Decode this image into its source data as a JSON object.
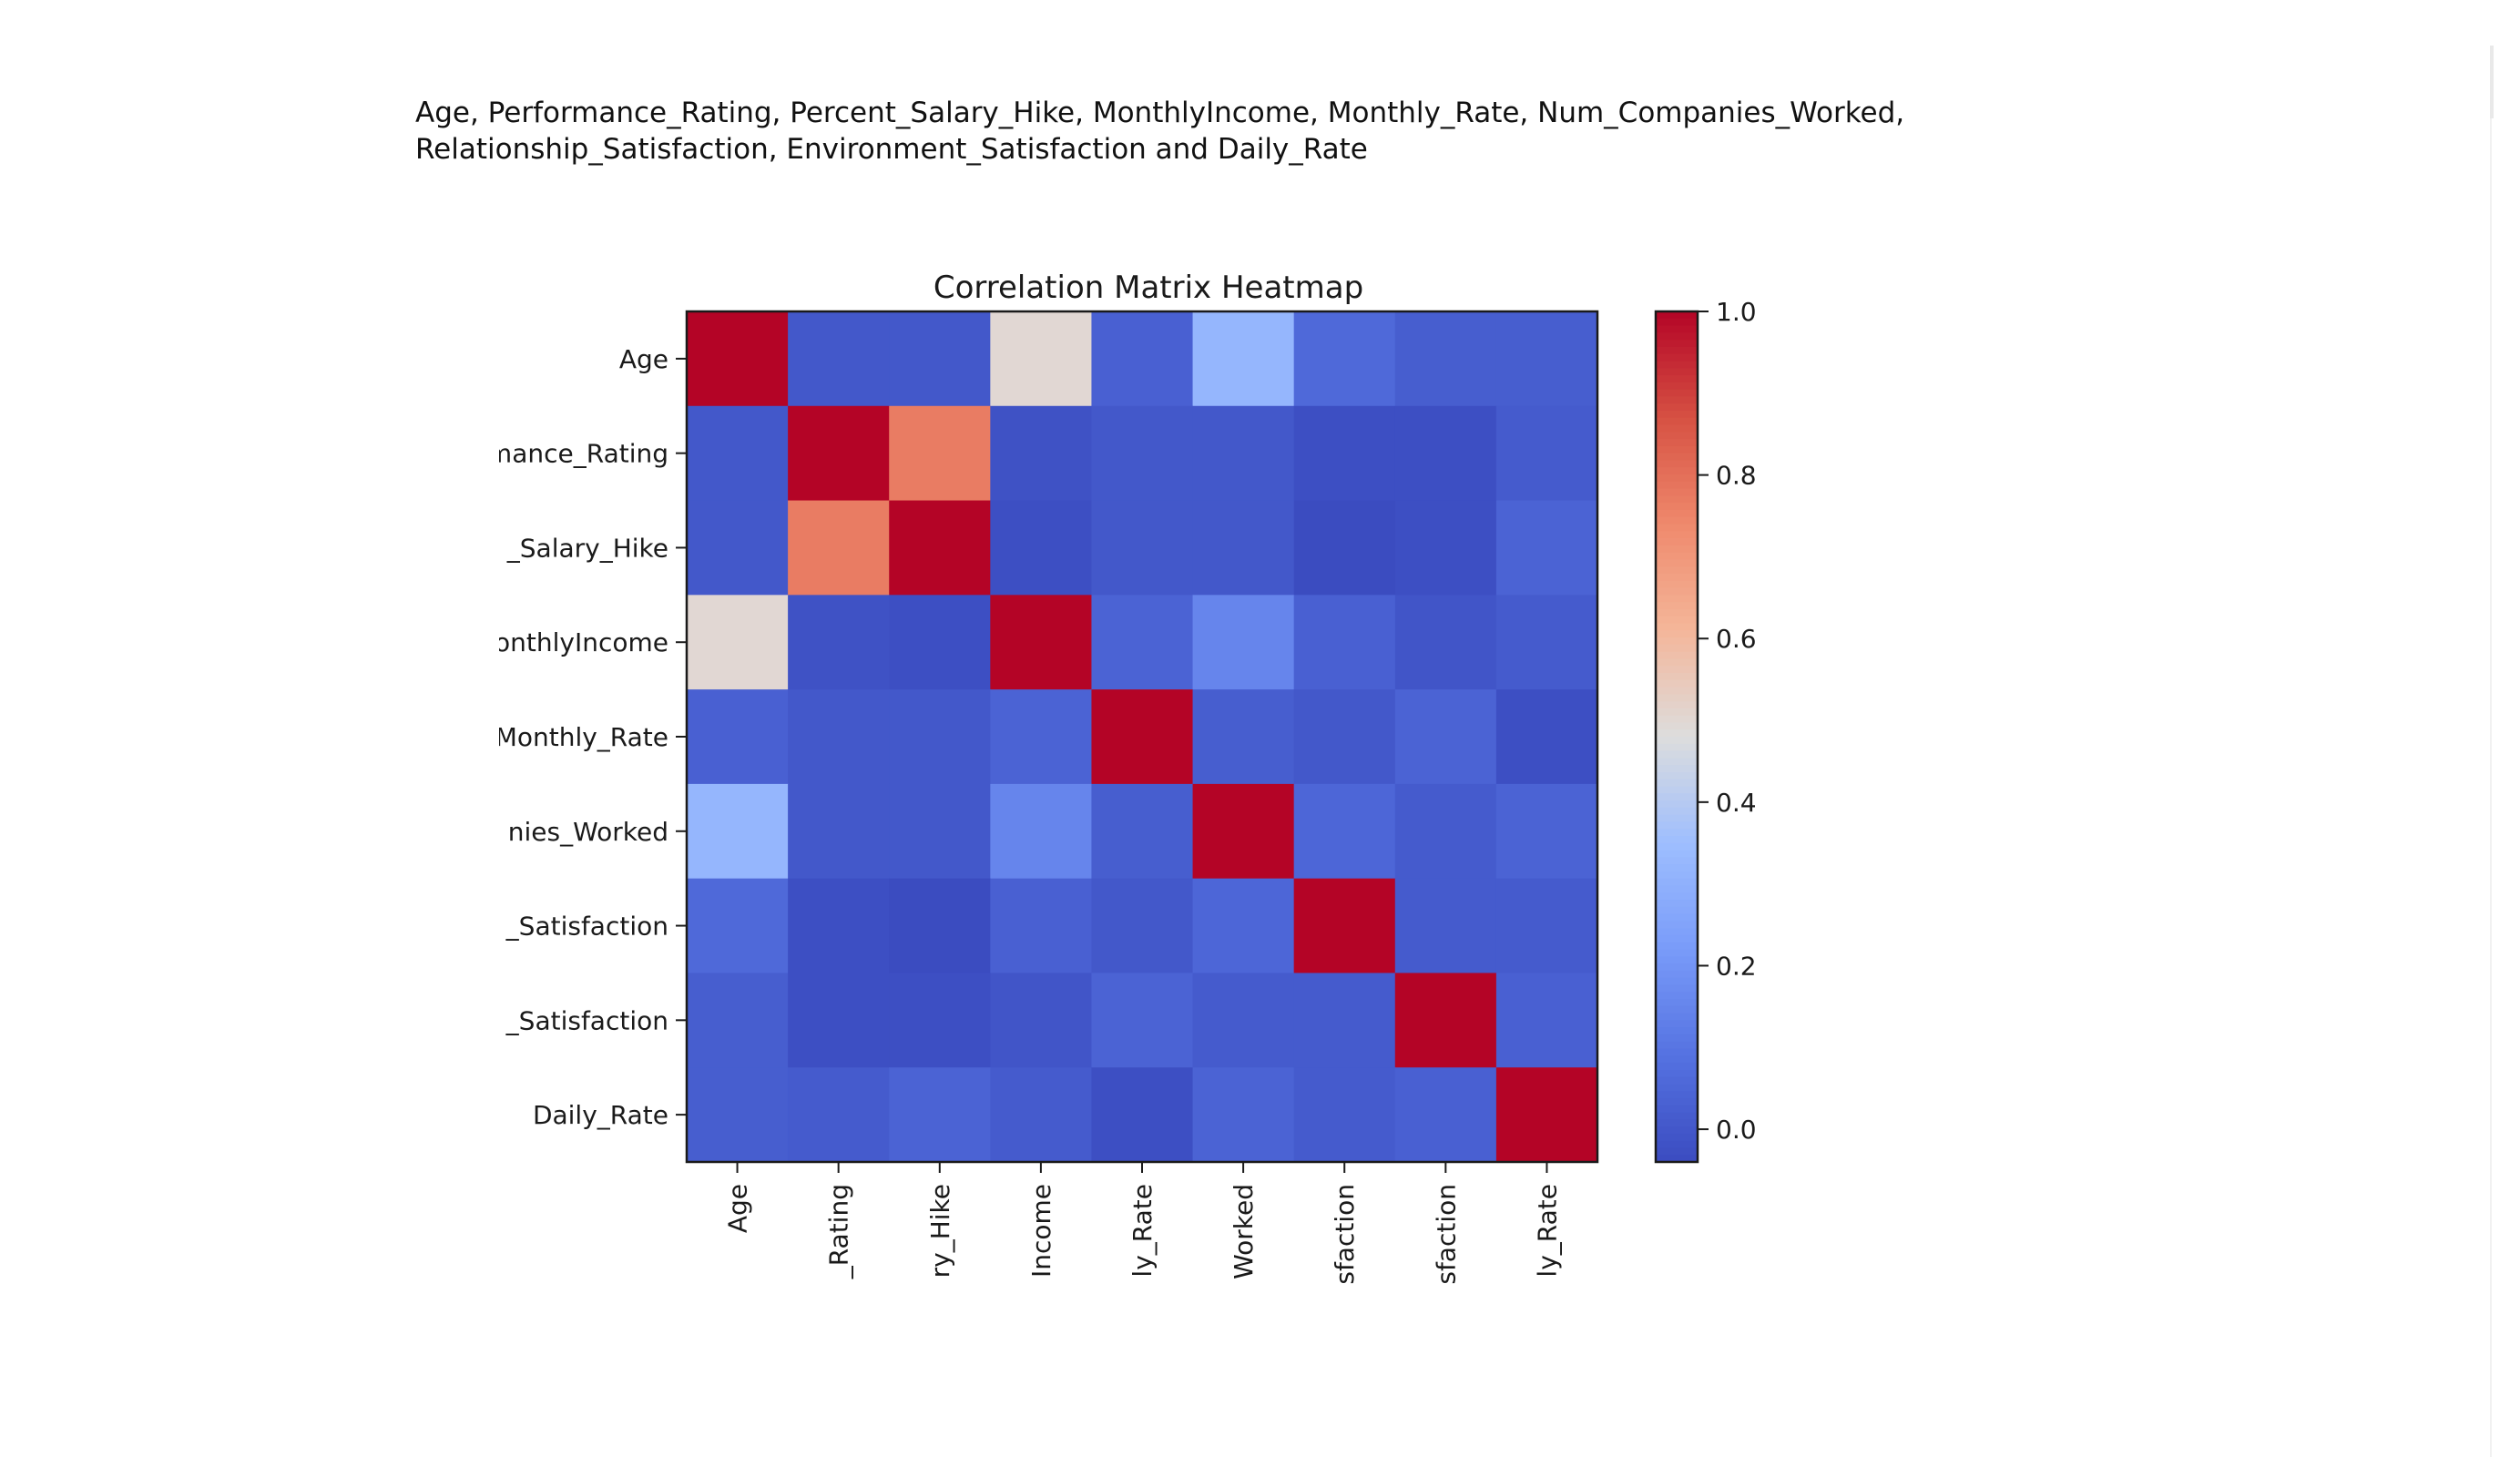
{
  "caption": {
    "line1": "Age, Performance_Rating, Percent_Salary_Hike, MonthlyIncome, Monthly_Rate, Num_Companies_Worked,",
    "line2": "Relationship_Satisfaction, Environment_Satisfaction and Daily_Rate"
  },
  "chart_data": {
    "type": "heatmap",
    "title": "Correlation Matrix Heatmap",
    "row_labels": [
      "Age",
      "mance_Rating",
      "_Salary_Hike",
      "onthlyIncome",
      "Monthly_Rate",
      "nies_Worked",
      "_Satisfaction",
      "_Satisfaction",
      "Daily_Rate"
    ],
    "col_labels": [
      "Age",
      "_Rating",
      "ry_Hike",
      "Income",
      "ly_Rate",
      "Worked",
      "sfaction",
      "sfaction",
      "ly_Rate"
    ],
    "matrix": [
      [
        1.0,
        0.0,
        0.0,
        0.5,
        0.03,
        0.32,
        0.06,
        0.02,
        0.02
      ],
      [
        0.0,
        1.0,
        0.77,
        -0.02,
        0.0,
        0.0,
        -0.03,
        -0.03,
        0.01
      ],
      [
        0.0,
        0.77,
        1.0,
        -0.03,
        0.0,
        0.0,
        -0.04,
        -0.03,
        0.04
      ],
      [
        0.5,
        -0.02,
        -0.03,
        1.0,
        0.04,
        0.15,
        0.03,
        -0.01,
        0.01
      ],
      [
        0.03,
        0.0,
        0.0,
        0.04,
        1.0,
        0.02,
        0.0,
        0.04,
        -0.03
      ],
      [
        0.32,
        0.0,
        0.0,
        0.15,
        0.02,
        1.0,
        0.05,
        0.01,
        0.04
      ],
      [
        0.06,
        -0.03,
        -0.04,
        0.03,
        0.0,
        0.05,
        1.0,
        0.01,
        0.01
      ],
      [
        0.02,
        -0.03,
        -0.03,
        -0.01,
        0.04,
        0.01,
        0.01,
        1.0,
        0.03
      ],
      [
        0.02,
        0.01,
        0.04,
        0.01,
        -0.03,
        0.04,
        0.01,
        0.03,
        1.0
      ]
    ],
    "colormap": "coolwarm",
    "colorbar": {
      "vmin": -0.04,
      "vmax": 1.0,
      "ticks": [
        0.0,
        0.2,
        0.4,
        0.6,
        0.8,
        1.0
      ],
      "tick_labels": [
        "0.0",
        "0.2",
        "0.4",
        "0.6",
        "0.8",
        "1.0"
      ]
    }
  }
}
